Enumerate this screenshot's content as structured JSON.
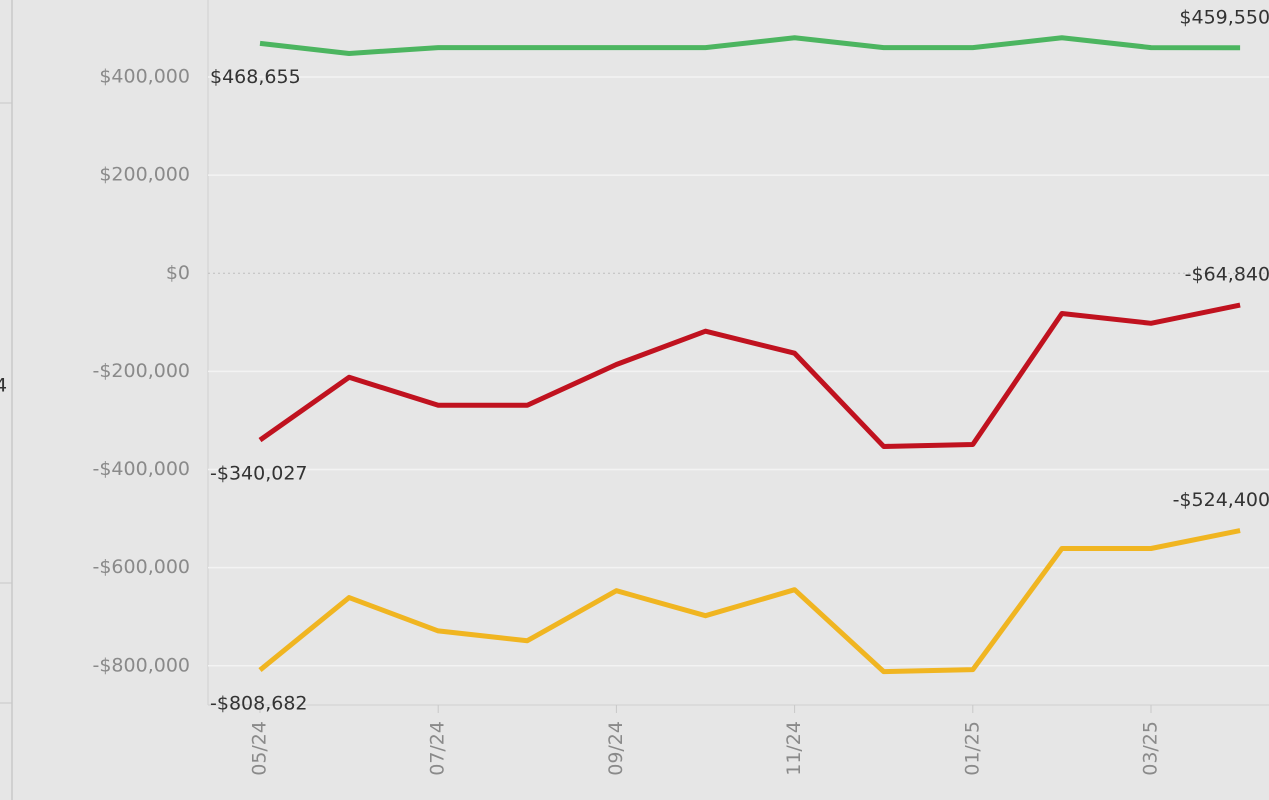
{
  "left_panel_label": "4",
  "chart_data": {
    "type": "line",
    "categories": [
      "05/24",
      null,
      "07/24",
      null,
      "09/24",
      null,
      "11/24",
      null,
      "01/25",
      null,
      "03/25",
      null
    ],
    "series": [
      {
        "color": "#4cb560",
        "values": [
          468655,
          448000,
          460000,
          460000,
          460000,
          460000,
          480000,
          460000,
          460000,
          480000,
          460000,
          459550
        ],
        "value_labels": [
          "$468,655",
          null,
          null,
          null,
          null,
          null,
          null,
          null,
          null,
          null,
          null,
          "$459,550"
        ]
      },
      {
        "color": "#c0121f",
        "values": [
          -340027,
          -212000,
          -269000,
          -269000,
          -186000,
          -118000,
          -163000,
          -353000,
          -349000,
          -82000,
          -102000,
          -64840
        ],
        "value_labels": [
          "-$340,027",
          null,
          null,
          null,
          null,
          null,
          null,
          null,
          null,
          null,
          null,
          "-$64,840"
        ]
      },
      {
        "color": "#f0b521",
        "values": [
          -808682,
          -661000,
          -729000,
          -749000,
          -647000,
          -698000,
          -645000,
          -812000,
          -808000,
          -561000,
          -561000,
          -524400
        ],
        "value_labels": [
          "-$808,682",
          null,
          null,
          null,
          null,
          null,
          null,
          null,
          null,
          null,
          null,
          "-$524,400"
        ]
      }
    ],
    "ylim": [
      -880000,
      557000
    ],
    "yticks": [
      {
        "value": -800000,
        "label": "-$800,000"
      },
      {
        "value": -600000,
        "label": "-$600,000"
      },
      {
        "value": -400000,
        "label": "-$400,000"
      },
      {
        "value": -200000,
        "label": "-$200,000"
      },
      {
        "value": 0,
        "label": "$0"
      },
      {
        "value": 200000,
        "label": "$200,000"
      },
      {
        "value": 400000,
        "label": "$400,000"
      }
    ],
    "grid": true
  }
}
